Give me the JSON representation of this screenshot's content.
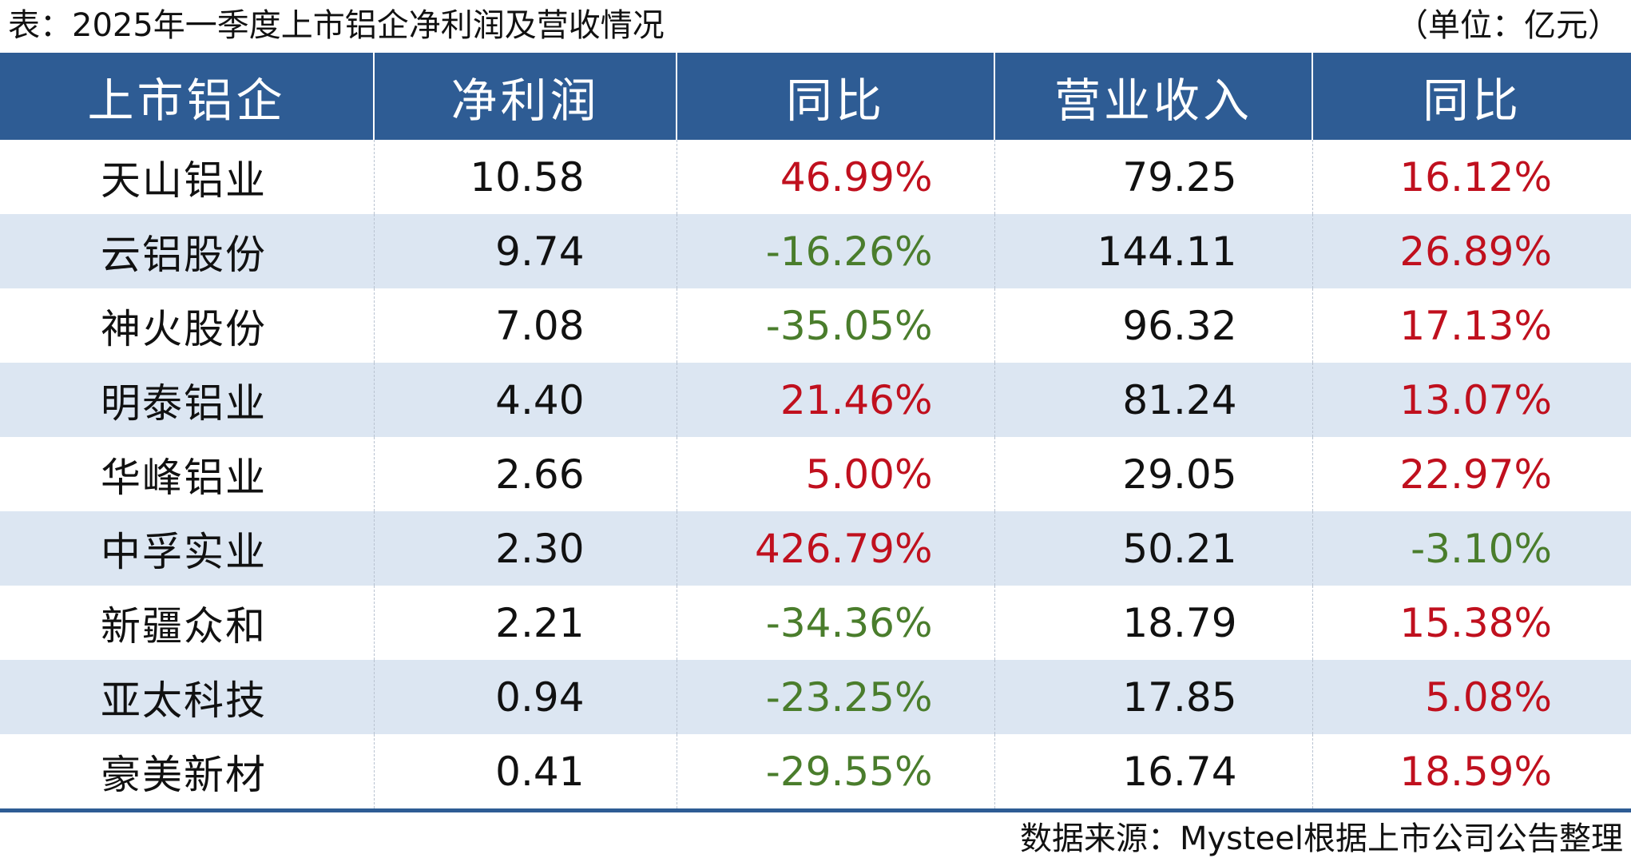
{
  "caption": {
    "title": "表：2025年一季度上市铝企净利润及营收情况",
    "unit": "（单位：亿元）"
  },
  "table": {
    "headers": [
      "上市铝企",
      "净利润",
      "同比",
      "营业收入",
      "同比"
    ],
    "rows": [
      {
        "company": "天山铝业",
        "net_profit": "10.58",
        "np_yoy": "46.99%",
        "np_yoy_sign": "pos",
        "revenue": "79.25",
        "rev_yoy": "16.12%",
        "rev_yoy_sign": "pos"
      },
      {
        "company": "云铝股份",
        "net_profit": "9.74",
        "np_yoy": "-16.26%",
        "np_yoy_sign": "neg",
        "revenue": "144.11",
        "rev_yoy": "26.89%",
        "rev_yoy_sign": "pos"
      },
      {
        "company": "神火股份",
        "net_profit": "7.08",
        "np_yoy": "-35.05%",
        "np_yoy_sign": "neg",
        "revenue": "96.32",
        "rev_yoy": "17.13%",
        "rev_yoy_sign": "pos"
      },
      {
        "company": "明泰铝业",
        "net_profit": "4.40",
        "np_yoy": "21.46%",
        "np_yoy_sign": "pos",
        "revenue": "81.24",
        "rev_yoy": "13.07%",
        "rev_yoy_sign": "pos"
      },
      {
        "company": "华峰铝业",
        "net_profit": "2.66",
        "np_yoy": "5.00%",
        "np_yoy_sign": "pos",
        "revenue": "29.05",
        "rev_yoy": "22.97%",
        "rev_yoy_sign": "pos"
      },
      {
        "company": "中孚实业",
        "net_profit": "2.30",
        "np_yoy": "426.79%",
        "np_yoy_sign": "pos",
        "revenue": "50.21",
        "rev_yoy": "-3.10%",
        "rev_yoy_sign": "neg"
      },
      {
        "company": "新疆众和",
        "net_profit": "2.21",
        "np_yoy": "-34.36%",
        "np_yoy_sign": "neg",
        "revenue": "18.79",
        "rev_yoy": "15.38%",
        "rev_yoy_sign": "pos"
      },
      {
        "company": "亚太科技",
        "net_profit": "0.94",
        "np_yoy": "-23.25%",
        "np_yoy_sign": "neg",
        "revenue": "17.85",
        "rev_yoy": "5.08%",
        "rev_yoy_sign": "pos"
      },
      {
        "company": "豪美新材",
        "net_profit": "0.41",
        "np_yoy": "-29.55%",
        "np_yoy_sign": "neg",
        "revenue": "16.74",
        "rev_yoy": "18.59%",
        "rev_yoy_sign": "pos"
      }
    ]
  },
  "colors": {
    "header_bg": "#2e5c94",
    "header_text": "#ffffff",
    "alt_row_bg": "#dce6f2",
    "positive": "#c0101e",
    "negative": "#4a7d2c"
  },
  "source": "数据来源：Mysteel根据上市公司公告整理"
}
